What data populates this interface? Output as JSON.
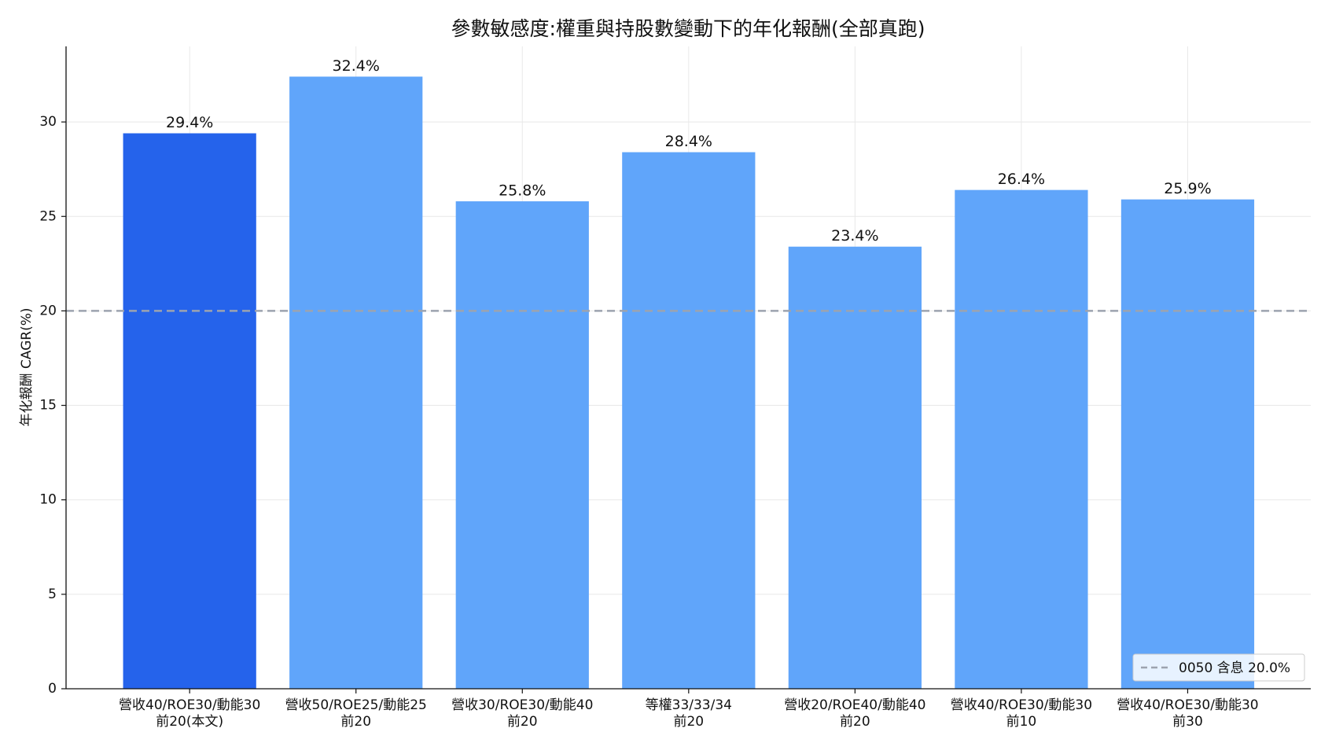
{
  "chart_data": {
    "type": "bar",
    "title": "參數敏感度:權重與持股數變動下的年化報酬(全部真跑)",
    "y_label": "年化報酬 CAGR(%)",
    "categories": [
      [
        "營收40/ROE30/動能30",
        "前20(本文)"
      ],
      [
        "營收50/ROE25/動能25",
        "前20"
      ],
      [
        "營收30/ROE30/動能40",
        "前20"
      ],
      [
        "等權33/33/34",
        "前20"
      ],
      [
        "營收20/ROE40/動能40",
        "前20"
      ],
      [
        "營收40/ROE30/動能30",
        "前10"
      ],
      [
        "營收40/ROE30/動能30",
        "前30"
      ]
    ],
    "values": [
      29.4,
      32.4,
      25.8,
      28.4,
      23.4,
      26.4,
      25.9
    ],
    "value_labels": [
      "29.4%",
      "32.4%",
      "25.8%",
      "28.4%",
      "23.4%",
      "26.4%",
      "25.9%"
    ],
    "colors": [
      "#2563eb",
      "#60a5fa",
      "#60a5fa",
      "#60a5fa",
      "#60a5fa",
      "#60a5fa",
      "#60a5fa"
    ],
    "ylim": [
      0,
      34.0
    ],
    "yticks": [
      0,
      5,
      10,
      15,
      20,
      25,
      30
    ],
    "grid": true,
    "reference_line": {
      "value": 20,
      "label": "0050 含息 20.0%",
      "color": "#9ca3af"
    },
    "legend": "lower right"
  }
}
